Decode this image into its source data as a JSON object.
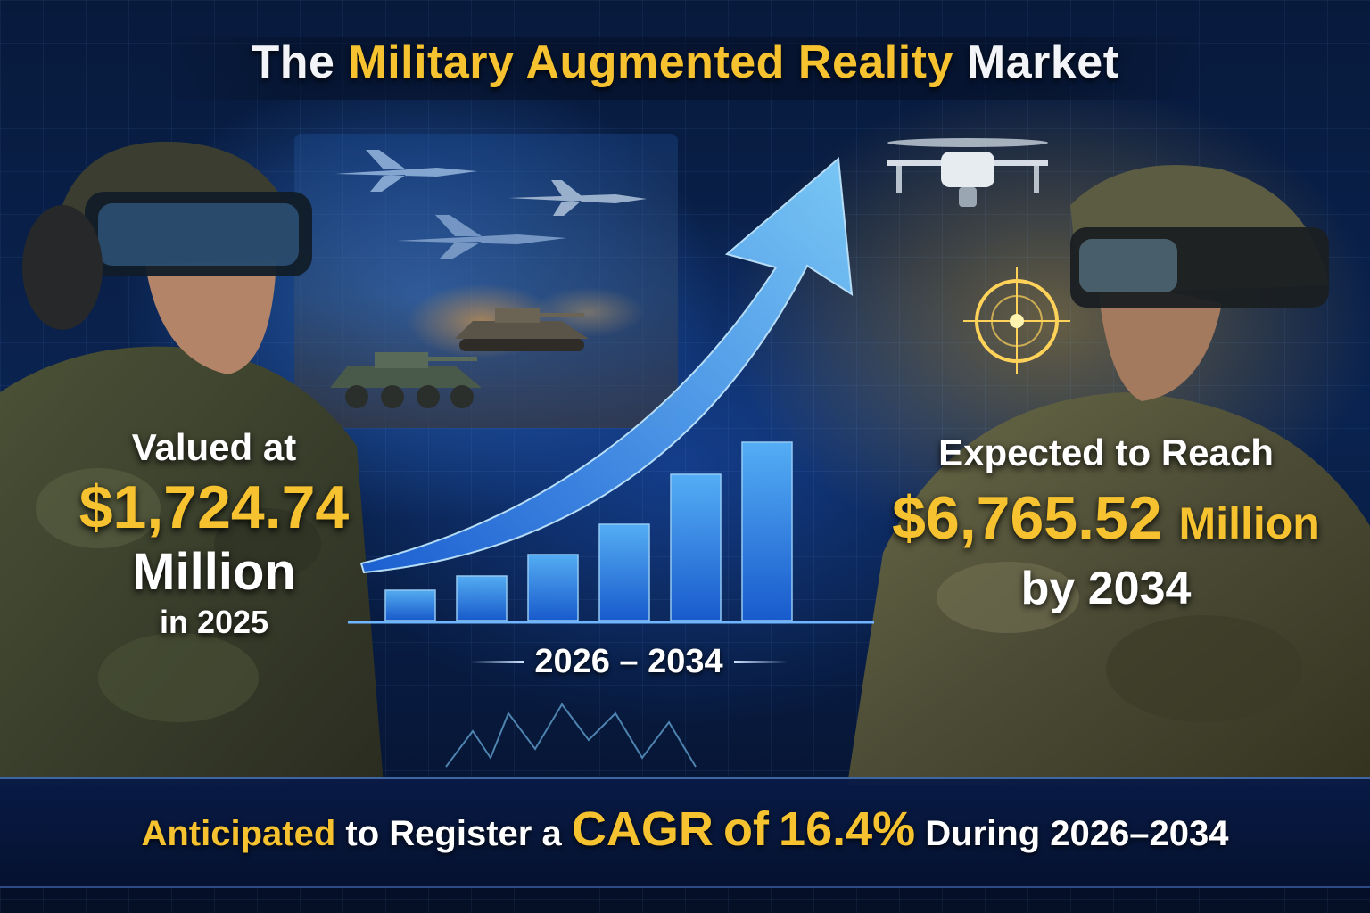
{
  "title": {
    "part1": "The",
    "part2": "Military Augmented Reality",
    "part3": "Market"
  },
  "left": {
    "line1": "Valued at",
    "value": "$1,724.74",
    "unit": "Million",
    "year": "in 2025"
  },
  "right": {
    "line1": "Expected to Reach",
    "value": "$6,765.52",
    "unit": "Million",
    "year": "by 2034"
  },
  "center": {
    "range": "2026 – 2034",
    "bar_levels": [
      0.17,
      0.25,
      0.37,
      0.54,
      0.82,
      1.0
    ]
  },
  "bottom": {
    "part1": "Anticipated",
    "part2": "to Register a",
    "part3": "CAGR",
    "part4": "of",
    "part5": "16.4%",
    "part6": "During 2026–2034"
  },
  "colors": {
    "accent_gold": "#f6c22f",
    "accent_blue": "#3aa0ff"
  }
}
